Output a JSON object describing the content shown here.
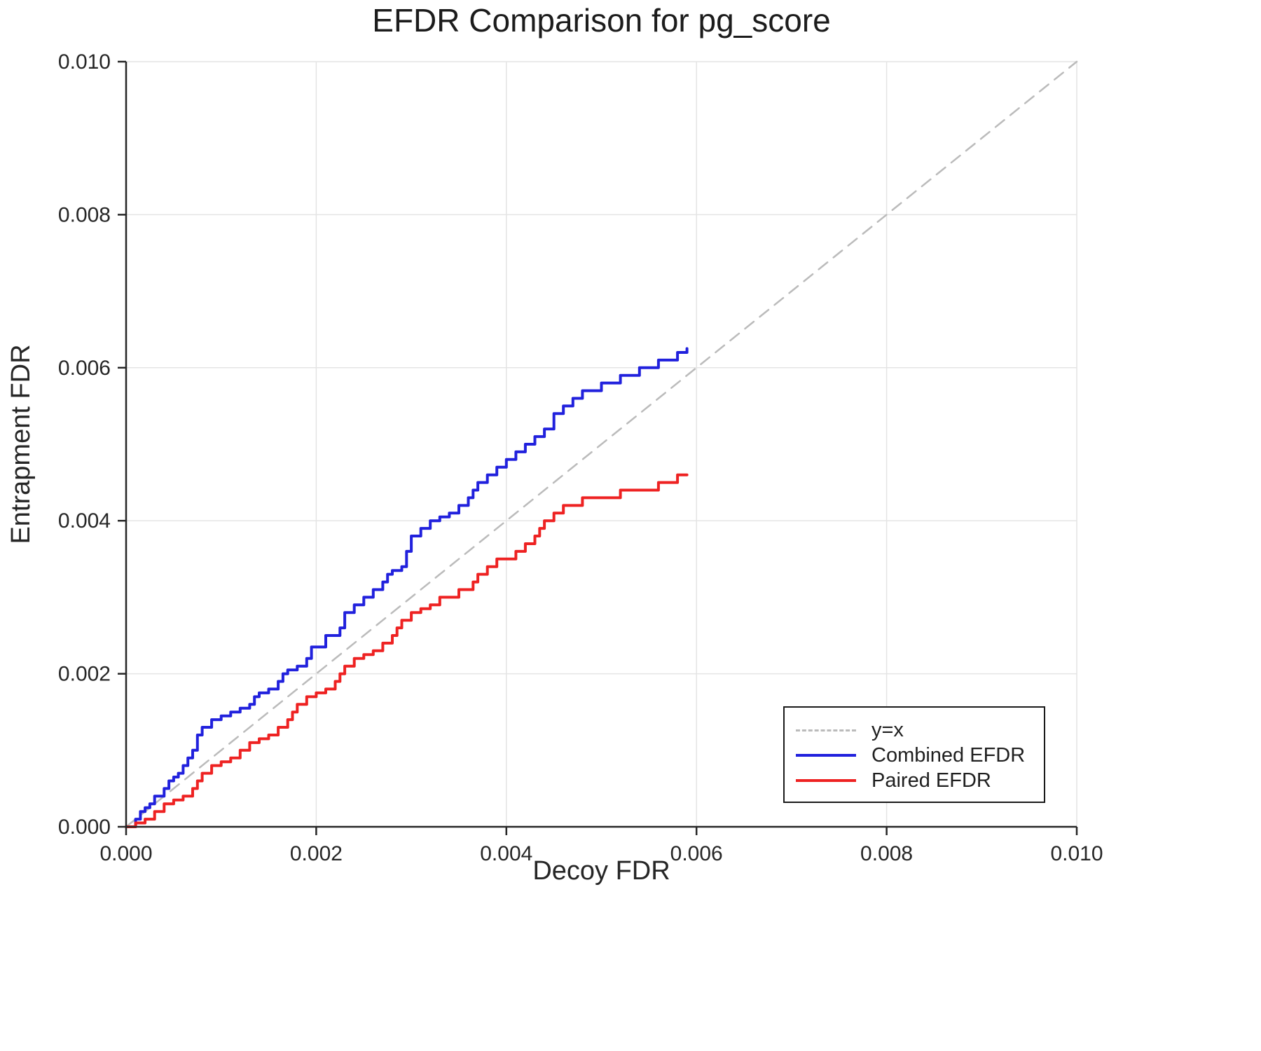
{
  "chart_data": {
    "type": "line",
    "title": "EFDR Comparison for pg_score",
    "xlabel": "Decoy FDR",
    "ylabel": "Entrapment FDR",
    "xlim": [
      0,
      0.01
    ],
    "ylim": [
      0,
      0.01
    ],
    "grid": true,
    "legend_position": "lower right",
    "xticks": {
      "values": [
        0,
        0.002,
        0.004,
        0.006,
        0.008,
        0.01
      ],
      "labels": [
        "0.000",
        "0.002",
        "0.004",
        "0.006",
        "0.008",
        "0.010"
      ]
    },
    "yticks": {
      "values": [
        0,
        0.002,
        0.004,
        0.006,
        0.008,
        0.01
      ],
      "labels": [
        "0.000",
        "0.002",
        "0.004",
        "0.006",
        "0.008",
        "0.010"
      ]
    },
    "colors": {
      "grid": "#e4e4e4",
      "spine": "#262626",
      "tick_label": "#262626"
    },
    "series": [
      {
        "name": "y=x",
        "style": "dashed",
        "interp": "linear",
        "color": "#bbbbbb",
        "width": 2.5,
        "x": [
          0,
          0.01
        ],
        "y": [
          0,
          0.01
        ]
      },
      {
        "name": "Combined EFDR",
        "style": "solid",
        "interp": "step",
        "color": "#2121dd",
        "width": 4,
        "x": [
          0.0,
          0.0001,
          0.00015,
          0.0002,
          0.00025,
          0.0003,
          0.0004,
          0.00045,
          0.0005,
          0.00055,
          0.0006,
          0.00065,
          0.0007,
          0.00075,
          0.0008,
          0.0009,
          0.001,
          0.0011,
          0.0012,
          0.0013,
          0.00135,
          0.0014,
          0.0015,
          0.0016,
          0.00165,
          0.0017,
          0.0018,
          0.0019,
          0.00195,
          0.0021,
          0.0022,
          0.00225,
          0.0023,
          0.0024,
          0.0025,
          0.0026,
          0.0027,
          0.00275,
          0.0028,
          0.0029,
          0.00295,
          0.003,
          0.0031,
          0.0032,
          0.0033,
          0.0034,
          0.0035,
          0.0036,
          0.00365,
          0.0037,
          0.0038,
          0.0039,
          0.004,
          0.0041,
          0.0042,
          0.0043,
          0.0044,
          0.0045,
          0.0046,
          0.0047,
          0.0048,
          0.005,
          0.0052,
          0.0054,
          0.0056,
          0.0058,
          0.0059
        ],
        "y": [
          0.0,
          0.0001,
          0.0002,
          0.00025,
          0.0003,
          0.0004,
          0.0005,
          0.0006,
          0.00065,
          0.0007,
          0.0008,
          0.0009,
          0.001,
          0.0012,
          0.0013,
          0.0014,
          0.00145,
          0.0015,
          0.00155,
          0.0016,
          0.0017,
          0.00175,
          0.0018,
          0.0019,
          0.002,
          0.00205,
          0.0021,
          0.0022,
          0.00235,
          0.0025,
          0.0025,
          0.0026,
          0.0028,
          0.0029,
          0.003,
          0.0031,
          0.0032,
          0.0033,
          0.00335,
          0.0034,
          0.0036,
          0.0038,
          0.0039,
          0.004,
          0.00405,
          0.0041,
          0.0042,
          0.0043,
          0.0044,
          0.0045,
          0.0046,
          0.0047,
          0.0048,
          0.0049,
          0.005,
          0.0051,
          0.0052,
          0.0054,
          0.0055,
          0.0056,
          0.0057,
          0.0058,
          0.0059,
          0.006,
          0.0061,
          0.0062,
          0.00625
        ]
      },
      {
        "name": "Paired EFDR",
        "style": "solid",
        "interp": "step",
        "color": "#ee2222",
        "width": 4,
        "x": [
          0.0,
          0.0001,
          0.0002,
          0.0003,
          0.0004,
          0.0005,
          0.0006,
          0.0007,
          0.00075,
          0.0008,
          0.0009,
          0.001,
          0.0011,
          0.0012,
          0.0013,
          0.0014,
          0.0015,
          0.0016,
          0.0017,
          0.00175,
          0.0018,
          0.0019,
          0.002,
          0.0021,
          0.0022,
          0.00225,
          0.0023,
          0.0024,
          0.0025,
          0.0026,
          0.0027,
          0.0028,
          0.00285,
          0.0029,
          0.003,
          0.0031,
          0.0032,
          0.0033,
          0.0034,
          0.0035,
          0.0036,
          0.00365,
          0.0037,
          0.0038,
          0.0039,
          0.004,
          0.0041,
          0.0042,
          0.0043,
          0.00435,
          0.0044,
          0.0045,
          0.0046,
          0.0048,
          0.005,
          0.0052,
          0.0054,
          0.0056,
          0.0058,
          0.0059
        ],
        "y": [
          0.0,
          5e-05,
          0.0001,
          0.0002,
          0.0003,
          0.00035,
          0.0004,
          0.0005,
          0.0006,
          0.0007,
          0.0008,
          0.00085,
          0.0009,
          0.001,
          0.0011,
          0.00115,
          0.0012,
          0.0013,
          0.0014,
          0.0015,
          0.0016,
          0.0017,
          0.00175,
          0.0018,
          0.0019,
          0.002,
          0.0021,
          0.0022,
          0.00225,
          0.0023,
          0.0024,
          0.0025,
          0.0026,
          0.0027,
          0.0028,
          0.00285,
          0.0029,
          0.003,
          0.003,
          0.0031,
          0.0031,
          0.0032,
          0.0033,
          0.0034,
          0.0035,
          0.0035,
          0.0036,
          0.0037,
          0.0038,
          0.0039,
          0.004,
          0.0041,
          0.0042,
          0.0043,
          0.0043,
          0.0044,
          0.0044,
          0.0045,
          0.0046,
          0.0046
        ]
      }
    ]
  },
  "legend": {
    "entries": [
      {
        "label": "y=x"
      },
      {
        "label": "Combined EFDR"
      },
      {
        "label": "Paired EFDR"
      }
    ]
  }
}
